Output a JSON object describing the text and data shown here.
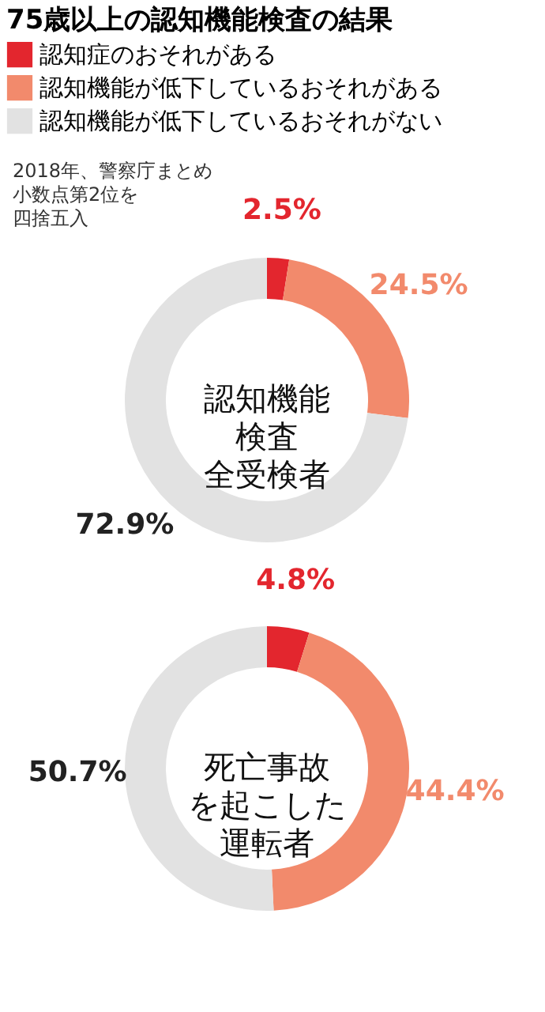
{
  "chart_data": [
    {
      "type": "donut",
      "title": "75歳以上の認知機能検査の結果",
      "legend": "top",
      "categories": [
        "認知症のおそれがある",
        "認知機能が低下しているおそれがある",
        "認知機能が低下しているおそれがない"
      ],
      "values": [
        2.5,
        24.5,
        72.9
      ],
      "colors": [
        "#e3262e",
        "#f28a6c",
        "#e2e2e2"
      ],
      "value_labels": [
        "2.5%",
        "24.5%",
        "72.9%"
      ],
      "annotations": [
        "2018年、警察庁まとめ小数点第2位を四捨五入",
        "認知機能検査全受検者"
      ]
    },
    {
      "type": "donut",
      "values": [
        4.8,
        44.4,
        50.7
      ],
      "colors": [
        "#e3262e",
        "#f28a6c",
        "#e2e2e2"
      ],
      "value_labels": [
        "4.8%",
        "44.4%",
        "50.7%"
      ],
      "annotations": [
        "死亡事故を起こした運転者"
      ]
    }
  ]
}
